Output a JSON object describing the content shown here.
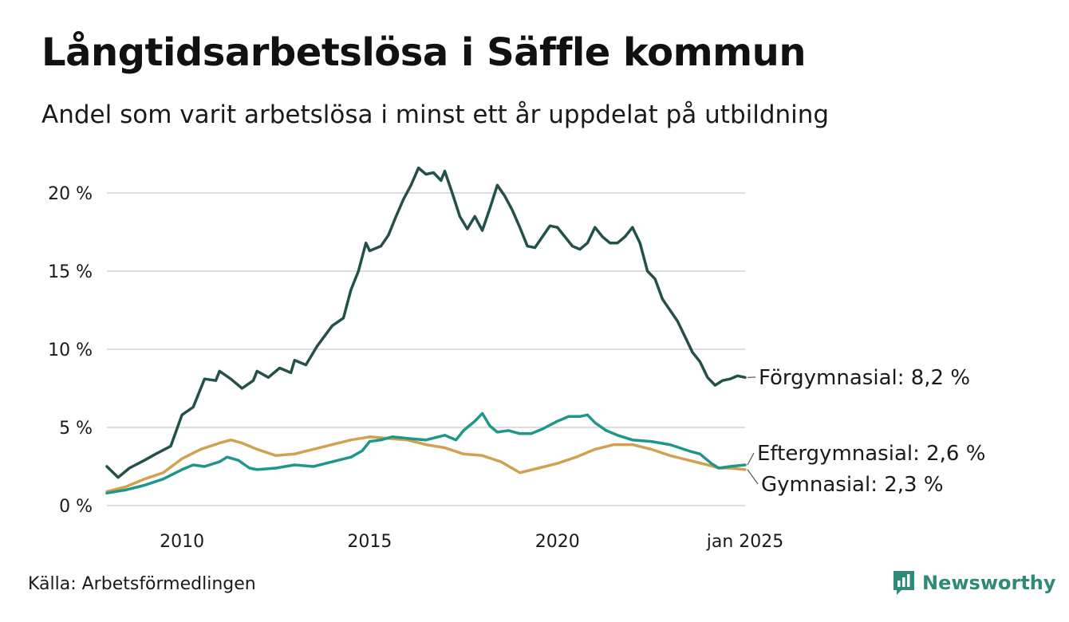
{
  "header": {
    "title": "Långtidsarbetslösa i Säffle kommun",
    "subtitle": "Andel som varit arbetslösa i minst ett år uppdelat på utbildning"
  },
  "footer": {
    "source": "Källa: Arbetsförmedlingen",
    "brand": "Newsworthy"
  },
  "chart_data": {
    "type": "line",
    "title": "Långtidsarbetslösa i Säffle kommun",
    "subtitle": "Andel som varit arbetslösa i minst ett år uppdelat på utbildning",
    "xlabel": "",
    "ylabel": "",
    "x_range": [
      2008.0,
      2025.0
    ],
    "ylim": [
      0,
      22
    ],
    "y_ticks": [
      0,
      5,
      10,
      15,
      20
    ],
    "y_tick_labels": [
      "0 %",
      "5 %",
      "10 %",
      "15 %",
      "20 %"
    ],
    "x_ticks": [
      2010,
      2015,
      2020,
      2025
    ],
    "x_tick_labels": [
      "2010",
      "2015",
      "2020",
      "jan 2025"
    ],
    "grid": "horizontal",
    "legend": "direct labels at right end of lines",
    "series": [
      {
        "name": "Förgymnasial",
        "label": "Förgymnasial: 8,2 %",
        "color": "#24504a",
        "points": [
          [
            2008.0,
            2.5
          ],
          [
            2008.3,
            1.8
          ],
          [
            2008.6,
            2.4
          ],
          [
            2009.0,
            2.9
          ],
          [
            2009.3,
            3.3
          ],
          [
            2009.7,
            3.8
          ],
          [
            2010.0,
            5.8
          ],
          [
            2010.3,
            6.3
          ],
          [
            2010.6,
            8.1
          ],
          [
            2010.9,
            8.0
          ],
          [
            2011.0,
            8.6
          ],
          [
            2011.3,
            8.1
          ],
          [
            2011.6,
            7.5
          ],
          [
            2011.9,
            8.0
          ],
          [
            2012.0,
            8.6
          ],
          [
            2012.3,
            8.2
          ],
          [
            2012.6,
            8.8
          ],
          [
            2012.9,
            8.5
          ],
          [
            2013.0,
            9.3
          ],
          [
            2013.3,
            9.0
          ],
          [
            2013.6,
            10.2
          ],
          [
            2014.0,
            11.5
          ],
          [
            2014.3,
            12.0
          ],
          [
            2014.5,
            13.8
          ],
          [
            2014.7,
            15.0
          ],
          [
            2014.9,
            16.8
          ],
          [
            2015.0,
            16.3
          ],
          [
            2015.3,
            16.6
          ],
          [
            2015.5,
            17.3
          ],
          [
            2015.7,
            18.5
          ],
          [
            2015.9,
            19.6
          ],
          [
            2016.1,
            20.5
          ],
          [
            2016.3,
            21.6
          ],
          [
            2016.5,
            21.2
          ],
          [
            2016.7,
            21.3
          ],
          [
            2016.9,
            20.8
          ],
          [
            2017.0,
            21.4
          ],
          [
            2017.2,
            20.0
          ],
          [
            2017.4,
            18.5
          ],
          [
            2017.6,
            17.7
          ],
          [
            2017.8,
            18.5
          ],
          [
            2018.0,
            17.6
          ],
          [
            2018.2,
            19.0
          ],
          [
            2018.4,
            20.5
          ],
          [
            2018.6,
            19.8
          ],
          [
            2018.8,
            18.9
          ],
          [
            2019.0,
            17.8
          ],
          [
            2019.2,
            16.6
          ],
          [
            2019.4,
            16.5
          ],
          [
            2019.6,
            17.2
          ],
          [
            2019.8,
            17.9
          ],
          [
            2020.0,
            17.8
          ],
          [
            2020.2,
            17.2
          ],
          [
            2020.4,
            16.6
          ],
          [
            2020.6,
            16.4
          ],
          [
            2020.8,
            16.8
          ],
          [
            2021.0,
            17.8
          ],
          [
            2021.2,
            17.2
          ],
          [
            2021.4,
            16.8
          ],
          [
            2021.6,
            16.8
          ],
          [
            2021.8,
            17.2
          ],
          [
            2022.0,
            17.8
          ],
          [
            2022.2,
            16.8
          ],
          [
            2022.4,
            15.0
          ],
          [
            2022.6,
            14.5
          ],
          [
            2022.8,
            13.2
          ],
          [
            2023.0,
            12.5
          ],
          [
            2023.2,
            11.8
          ],
          [
            2023.4,
            10.8
          ],
          [
            2023.6,
            9.8
          ],
          [
            2023.8,
            9.2
          ],
          [
            2024.0,
            8.2
          ],
          [
            2024.2,
            7.7
          ],
          [
            2024.4,
            8.0
          ],
          [
            2024.6,
            8.1
          ],
          [
            2024.8,
            8.3
          ],
          [
            2025.0,
            8.2
          ]
        ]
      },
      {
        "name": "Eftergymnasial",
        "label": "Eftergymnasial: 2,6 %",
        "color": "#1e978a",
        "points": [
          [
            2008.0,
            0.8
          ],
          [
            2008.5,
            1.0
          ],
          [
            2009.0,
            1.3
          ],
          [
            2009.5,
            1.7
          ],
          [
            2010.0,
            2.3
          ],
          [
            2010.3,
            2.6
          ],
          [
            2010.6,
            2.5
          ],
          [
            2011.0,
            2.8
          ],
          [
            2011.2,
            3.1
          ],
          [
            2011.5,
            2.9
          ],
          [
            2011.8,
            2.4
          ],
          [
            2012.0,
            2.3
          ],
          [
            2012.5,
            2.4
          ],
          [
            2013.0,
            2.6
          ],
          [
            2013.5,
            2.5
          ],
          [
            2014.0,
            2.8
          ],
          [
            2014.5,
            3.1
          ],
          [
            2014.8,
            3.5
          ],
          [
            2015.0,
            4.1
          ],
          [
            2015.3,
            4.2
          ],
          [
            2015.6,
            4.4
          ],
          [
            2016.0,
            4.3
          ],
          [
            2016.5,
            4.2
          ],
          [
            2017.0,
            4.5
          ],
          [
            2017.3,
            4.2
          ],
          [
            2017.5,
            4.8
          ],
          [
            2017.8,
            5.4
          ],
          [
            2018.0,
            5.9
          ],
          [
            2018.2,
            5.1
          ],
          [
            2018.4,
            4.7
          ],
          [
            2018.7,
            4.8
          ],
          [
            2019.0,
            4.6
          ],
          [
            2019.3,
            4.6
          ],
          [
            2019.6,
            4.9
          ],
          [
            2020.0,
            5.4
          ],
          [
            2020.3,
            5.7
          ],
          [
            2020.6,
            5.7
          ],
          [
            2020.8,
            5.8
          ],
          [
            2021.0,
            5.3
          ],
          [
            2021.3,
            4.8
          ],
          [
            2021.6,
            4.5
          ],
          [
            2022.0,
            4.2
          ],
          [
            2022.5,
            4.1
          ],
          [
            2023.0,
            3.9
          ],
          [
            2023.5,
            3.5
          ],
          [
            2023.8,
            3.3
          ],
          [
            2024.1,
            2.7
          ],
          [
            2024.3,
            2.4
          ],
          [
            2024.6,
            2.5
          ],
          [
            2025.0,
            2.6
          ]
        ]
      },
      {
        "name": "Gymnasial",
        "label": "Gymnasial: 2,3 %",
        "color": "#d1a152",
        "points": [
          [
            2008.0,
            0.9
          ],
          [
            2008.5,
            1.2
          ],
          [
            2009.0,
            1.7
          ],
          [
            2009.5,
            2.1
          ],
          [
            2010.0,
            3.0
          ],
          [
            2010.5,
            3.6
          ],
          [
            2011.0,
            4.0
          ],
          [
            2011.3,
            4.2
          ],
          [
            2011.6,
            4.0
          ],
          [
            2012.0,
            3.6
          ],
          [
            2012.5,
            3.2
          ],
          [
            2013.0,
            3.3
          ],
          [
            2013.5,
            3.6
          ],
          [
            2014.0,
            3.9
          ],
          [
            2014.5,
            4.2
          ],
          [
            2015.0,
            4.4
          ],
          [
            2015.5,
            4.3
          ],
          [
            2016.0,
            4.2
          ],
          [
            2016.5,
            3.9
          ],
          [
            2017.0,
            3.7
          ],
          [
            2017.5,
            3.3
          ],
          [
            2018.0,
            3.2
          ],
          [
            2018.5,
            2.8
          ],
          [
            2019.0,
            2.1
          ],
          [
            2019.5,
            2.4
          ],
          [
            2020.0,
            2.7
          ],
          [
            2020.5,
            3.1
          ],
          [
            2021.0,
            3.6
          ],
          [
            2021.5,
            3.9
          ],
          [
            2022.0,
            3.9
          ],
          [
            2022.5,
            3.6
          ],
          [
            2023.0,
            3.2
          ],
          [
            2023.5,
            2.9
          ],
          [
            2024.0,
            2.6
          ],
          [
            2024.3,
            2.4
          ],
          [
            2024.6,
            2.4
          ],
          [
            2025.0,
            2.3
          ]
        ]
      }
    ]
  }
}
